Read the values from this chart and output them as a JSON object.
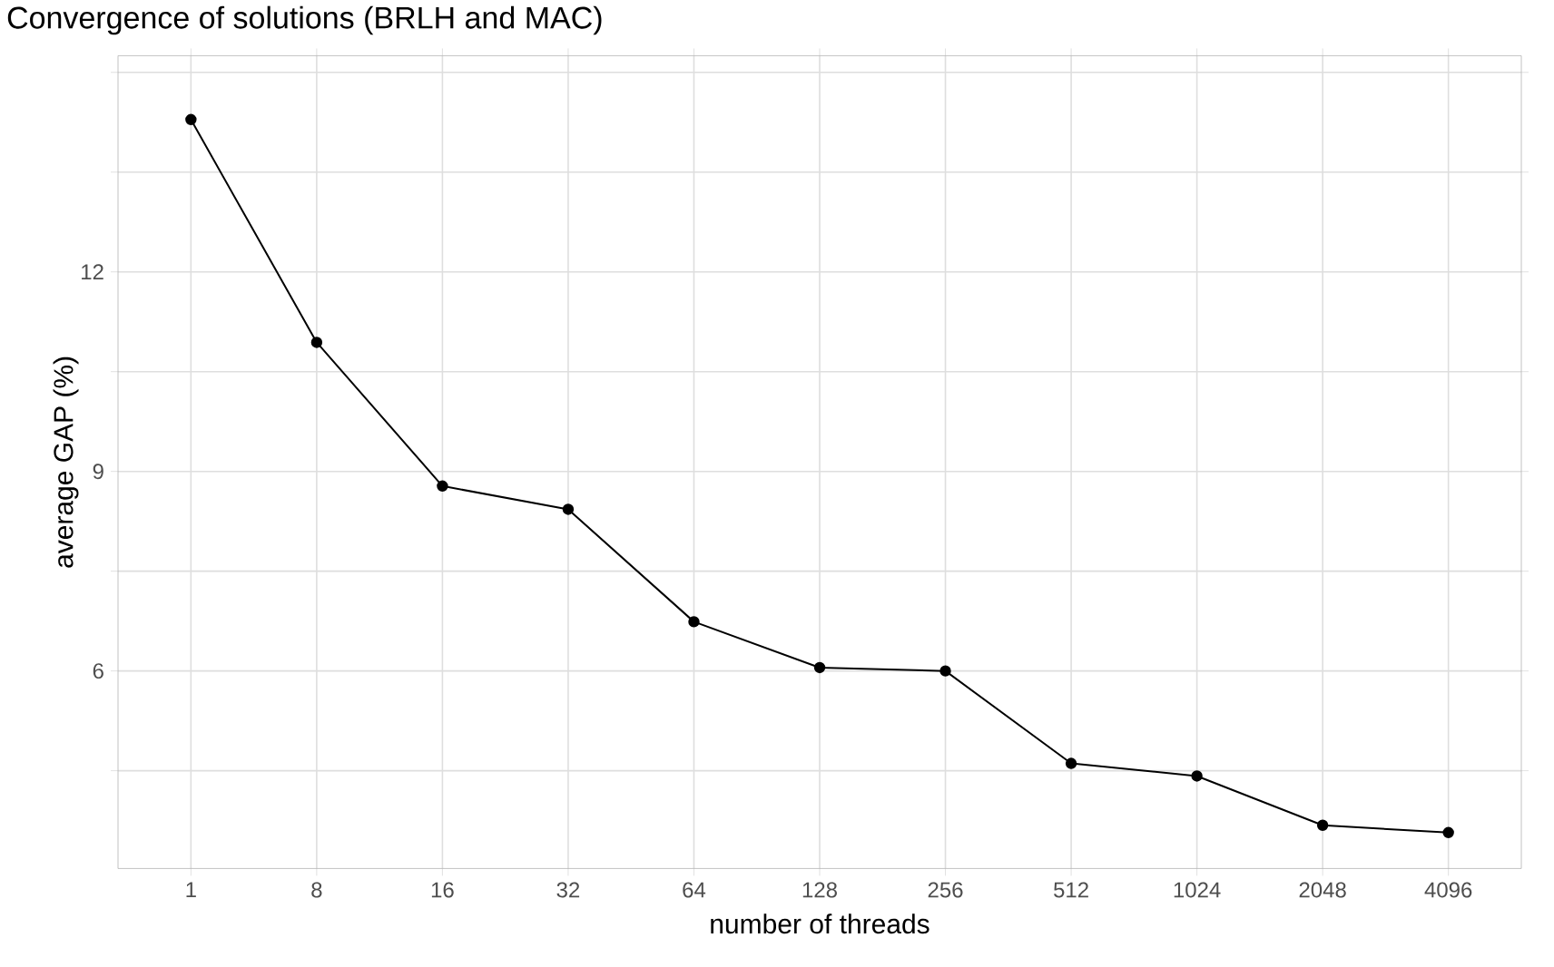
{
  "chart_data": {
    "type": "line",
    "title": "Convergence of solutions (BRLH and MAC)",
    "xlabel": "number of threads",
    "ylabel": "average GAP (%)",
    "categories": [
      "1",
      "8",
      "16",
      "32",
      "64",
      "128",
      "256",
      "512",
      "1024",
      "2048",
      "4096"
    ],
    "values": [
      14.29,
      10.94,
      8.78,
      8.43,
      6.74,
      6.05,
      6.0,
      4.61,
      4.42,
      3.68,
      3.57
    ],
    "color": "#000000",
    "marker": "circle",
    "line_style": "solid",
    "ylim": [
      3.03,
      15.25
    ],
    "yticks": [
      {
        "value": 4.5,
        "label": null
      },
      6,
      {
        "value": 7.5,
        "label": null
      },
      9,
      {
        "value": 10.5,
        "label": null
      },
      12,
      {
        "value": 13.5,
        "label": null
      },
      {
        "value": 15,
        "label": null
      }
    ],
    "grid": true
  }
}
